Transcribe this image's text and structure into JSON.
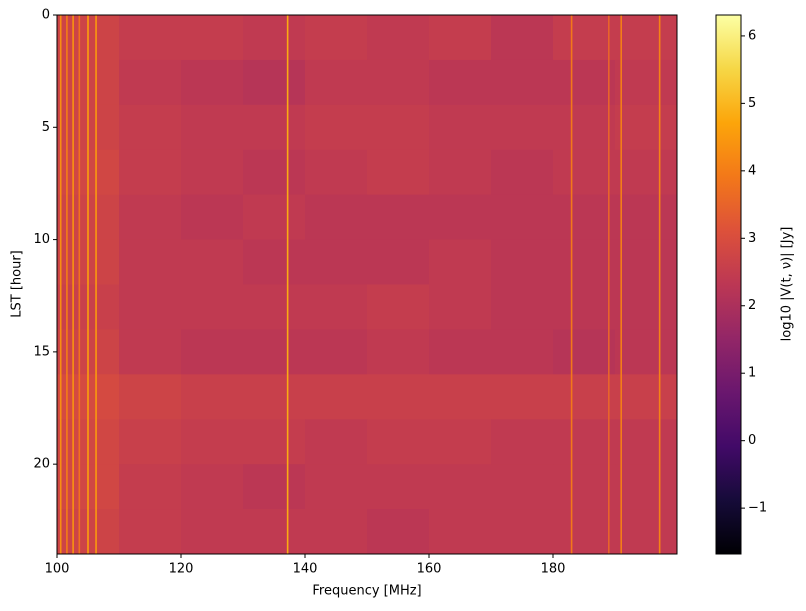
{
  "chart_data": {
    "type": "heatmap",
    "x_label": "Frequency [MHz]",
    "y_label": "LST [hour]",
    "colorbar_label": "log10 |V(t, ν)| [Jy]",
    "colormap": "inferno",
    "x": [
      100,
      110,
      120,
      130,
      140,
      150,
      160,
      170,
      180,
      190,
      200
    ],
    "y": [
      0,
      2,
      4,
      6,
      8,
      10,
      12,
      14,
      16,
      18,
      20,
      22,
      24
    ],
    "z": [
      [
        2.7,
        2.5,
        2.5,
        2.4,
        2.5,
        2.4,
        2.5,
        2.3,
        2.5,
        2.5
      ],
      [
        2.7,
        2.4,
        2.3,
        2.2,
        2.4,
        2.4,
        2.3,
        2.3,
        2.3,
        2.4
      ],
      [
        2.7,
        2.5,
        2.4,
        2.4,
        2.5,
        2.5,
        2.4,
        2.4,
        2.4,
        2.5
      ],
      [
        2.8,
        2.5,
        2.4,
        2.3,
        2.4,
        2.5,
        2.4,
        2.3,
        2.4,
        2.4
      ],
      [
        2.7,
        2.4,
        2.3,
        2.4,
        2.3,
        2.3,
        2.3,
        2.3,
        2.3,
        2.3
      ],
      [
        2.7,
        2.4,
        2.4,
        2.3,
        2.3,
        2.3,
        2.4,
        2.3,
        2.3,
        2.3
      ],
      [
        2.6,
        2.4,
        2.4,
        2.4,
        2.4,
        2.5,
        2.4,
        2.3,
        2.3,
        2.3
      ],
      [
        2.7,
        2.4,
        2.3,
        2.3,
        2.3,
        2.4,
        2.3,
        2.3,
        2.2,
        2.3
      ],
      [
        2.9,
        2.7,
        2.6,
        2.6,
        2.6,
        2.6,
        2.6,
        2.6,
        2.6,
        2.6
      ],
      [
        2.8,
        2.6,
        2.5,
        2.5,
        2.4,
        2.5,
        2.5,
        2.4,
        2.4,
        2.4
      ],
      [
        2.8,
        2.5,
        2.4,
        2.3,
        2.4,
        2.4,
        2.4,
        2.4,
        2.4,
        2.4
      ],
      [
        2.7,
        2.5,
        2.4,
        2.4,
        2.4,
        2.3,
        2.4,
        2.4,
        2.4,
        2.4
      ]
    ],
    "lines": [
      {
        "x": 100.6,
        "value": 4.3
      },
      {
        "x": 101.6,
        "value": 4.0
      },
      {
        "x": 102.6,
        "value": 4.4
      },
      {
        "x": 103.6,
        "value": 3.8
      },
      {
        "x": 105.0,
        "value": 4.6
      },
      {
        "x": 106.3,
        "value": 4.5
      },
      {
        "x": 137.2,
        "value": 4.8
      },
      {
        "x": 183.0,
        "value": 3.9
      },
      {
        "x": 189.0,
        "value": 3.5
      },
      {
        "x": 191.0,
        "value": 4.0
      },
      {
        "x": 197.2,
        "value": 4.1
      }
    ],
    "xlim": [
      100,
      200
    ],
    "ylim": [
      0,
      24
    ],
    "invert_y": true,
    "xticks": [
      100,
      120,
      140,
      160,
      180
    ],
    "yticks": [
      0,
      5,
      10,
      15,
      20
    ],
    "clim": [
      -1.68,
      6.31
    ],
    "cticks": [
      {
        "value": -1,
        "label": "−1"
      },
      0,
      1,
      2,
      3,
      4,
      5,
      6
    ]
  }
}
